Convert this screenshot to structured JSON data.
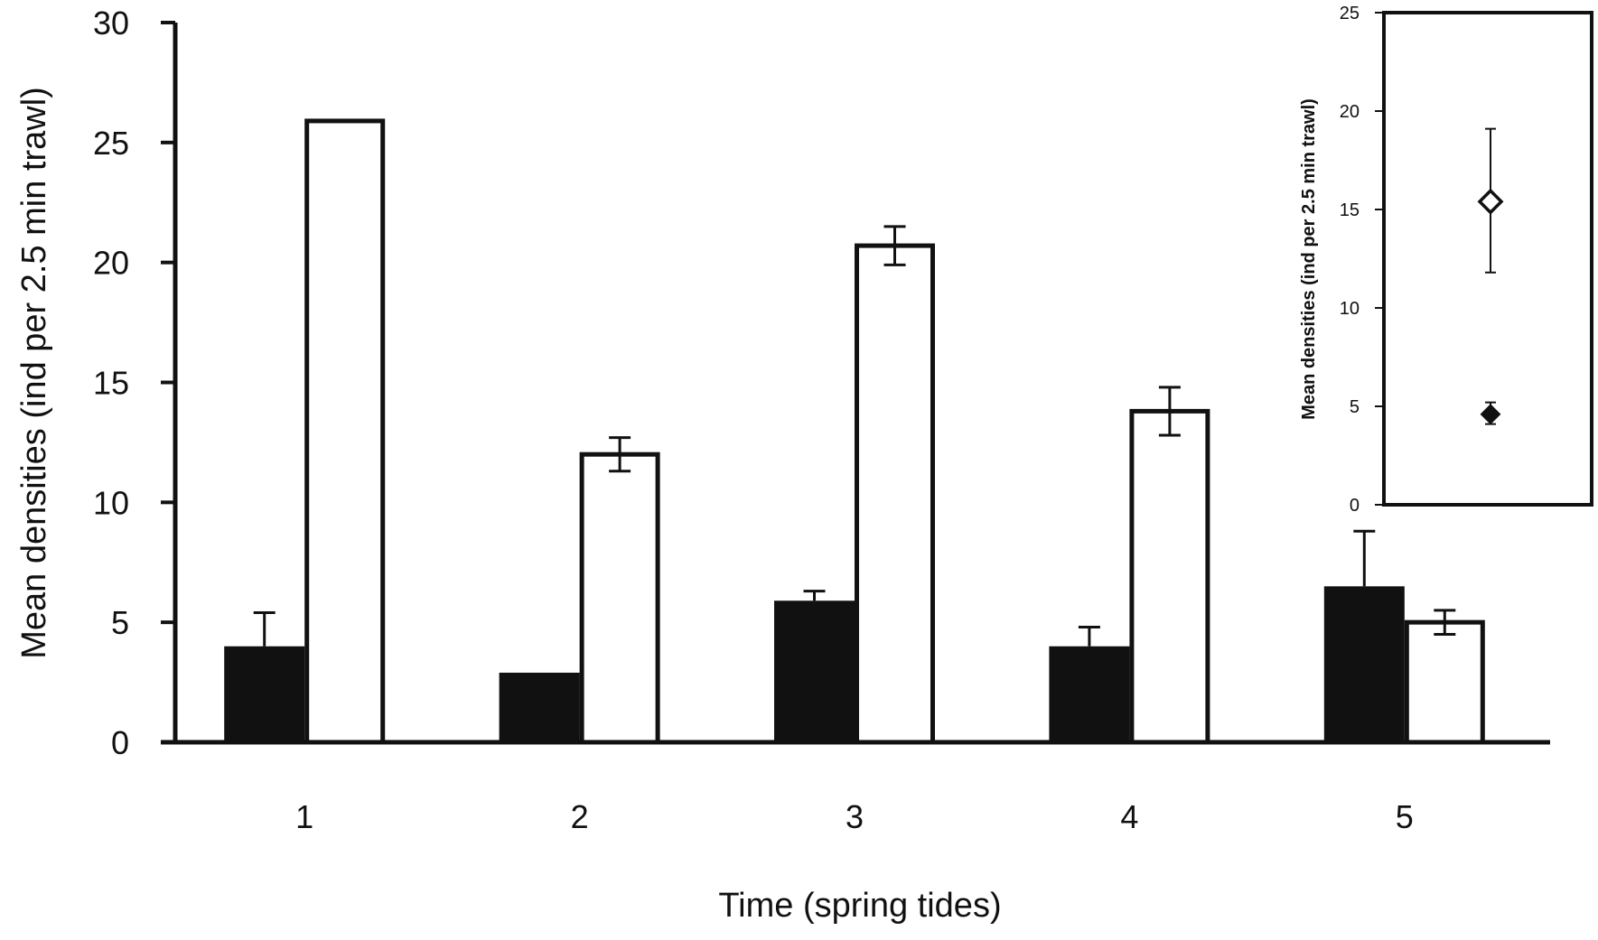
{
  "chart_data": [
    {
      "type": "bar",
      "title": "",
      "xlabel": "Time (spring  tides)",
      "ylabel": "Mean densities (ind per 2.5 min trawl)",
      "ylim": [
        0,
        30
      ],
      "yticks": [
        "0",
        "5",
        "10",
        "15",
        "20",
        "25",
        "30"
      ],
      "categories": [
        "1",
        "2",
        "3",
        "4",
        "5"
      ],
      "series": [
        {
          "fill": "#111111",
          "values": [
            4.0,
            2.9,
            5.9,
            4.0,
            6.5
          ],
          "errors": [
            1.4,
            0.0,
            0.4,
            0.8,
            2.3
          ]
        },
        {
          "fill": "#ffffff",
          "values": [
            25.9,
            12.0,
            20.7,
            13.8,
            5.0
          ],
          "errors": [
            0.0,
            0.7,
            0.8,
            1.0,
            0.5
          ]
        }
      ],
      "grid": false,
      "legend": "none"
    },
    {
      "type": "scatter",
      "title": "",
      "xlabel": "",
      "ylabel": "Mean densities (ind per 2.5 min trawl)",
      "ylim": [
        0,
        25
      ],
      "yticks": [
        "0",
        "5",
        "10",
        "15",
        "20",
        "25"
      ],
      "points": [
        {
          "marker": "open-diamond",
          "y": 15.4,
          "error_low": 11.8,
          "error_high": 19.1
        },
        {
          "marker": "filled-diamond",
          "y": 4.6,
          "error_low": 4.1,
          "error_high": 5.2
        }
      ],
      "grid": false,
      "legend": "none",
      "placement": "inset top-right"
    }
  ]
}
